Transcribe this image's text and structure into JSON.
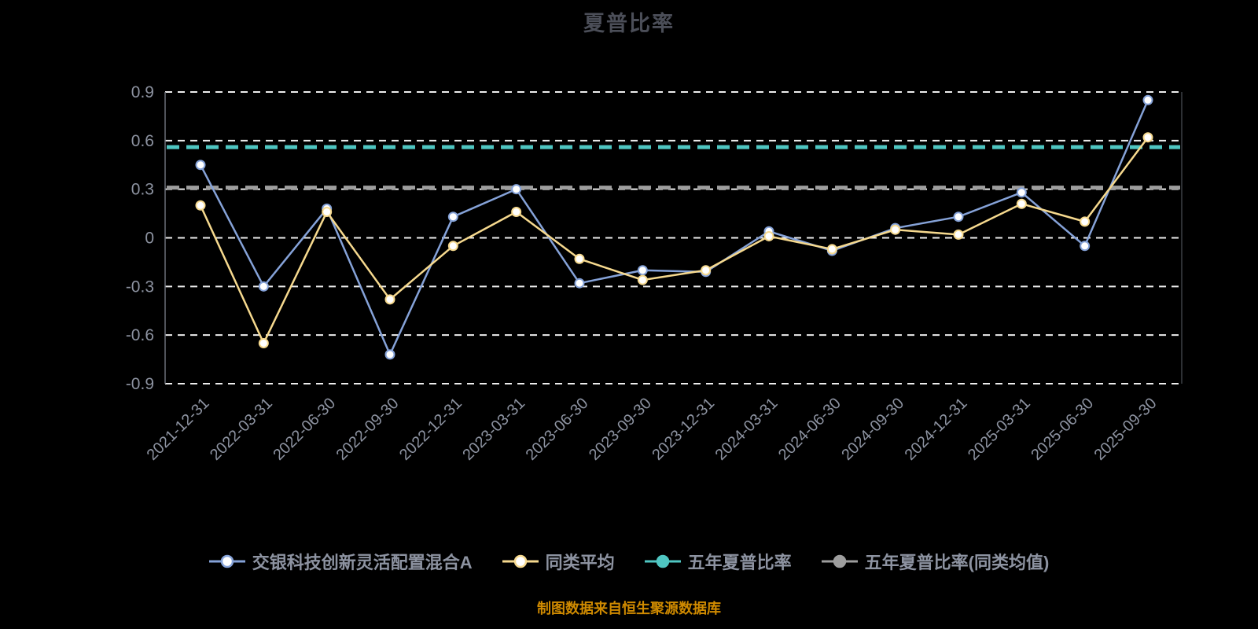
{
  "chart_data": {
    "type": "line",
    "title": "夏普比率",
    "categories": [
      "2021-12-31",
      "2022-03-31",
      "2022-06-30",
      "2022-09-30",
      "2022-12-31",
      "2023-03-31",
      "2023-06-30",
      "2023-09-30",
      "2023-12-31",
      "2024-03-31",
      "2024-06-30",
      "2024-09-30",
      "2024-12-31",
      "2025-03-31",
      "2025-06-30",
      "2025-09-30"
    ],
    "series": [
      {
        "name": "交银科技创新灵活配置混合A",
        "color": "#85a2d8",
        "marker_fill": "#ffffff",
        "values": [
          0.45,
          -0.3,
          0.18,
          -0.72,
          0.13,
          0.3,
          -0.28,
          -0.2,
          -0.21,
          0.04,
          -0.08,
          0.06,
          0.13,
          0.28,
          -0.05,
          0.85
        ]
      },
      {
        "name": "同类平均",
        "color": "#f6d98e",
        "marker_fill": "#ffffff",
        "values": [
          0.2,
          -0.65,
          0.16,
          -0.38,
          -0.05,
          0.16,
          -0.13,
          -0.26,
          -0.2,
          0.01,
          -0.07,
          0.05,
          0.02,
          0.21,
          0.1,
          0.62
        ]
      }
    ],
    "ref_lines": [
      {
        "name": "五年夏普比率",
        "color": "#4fc6c2",
        "value": 0.56
      },
      {
        "name": "五年夏普比率(同类均值)",
        "color": "#9e9e9e",
        "value": 0.31
      }
    ],
    "ylim": [
      -0.9,
      0.9
    ],
    "y_ticks": [
      0.9,
      0.6,
      0.3,
      0,
      -0.3,
      -0.6,
      -0.9
    ],
    "y_tick_labels": [
      "0.9",
      "0.6",
      "0.3",
      "0",
      "-0.3",
      "-0.6",
      "-0.9"
    ],
    "grid": true,
    "legend_position": "bottom"
  },
  "footer": {
    "note": "制图数据来自恒生聚源数据库"
  },
  "colors": {
    "background": "#000000",
    "gridline": "#ededed",
    "axis": "#6b6f78",
    "tick_label": "#8d93a1",
    "title": "#4b4e58",
    "footer_note": "#cf8a00"
  }
}
